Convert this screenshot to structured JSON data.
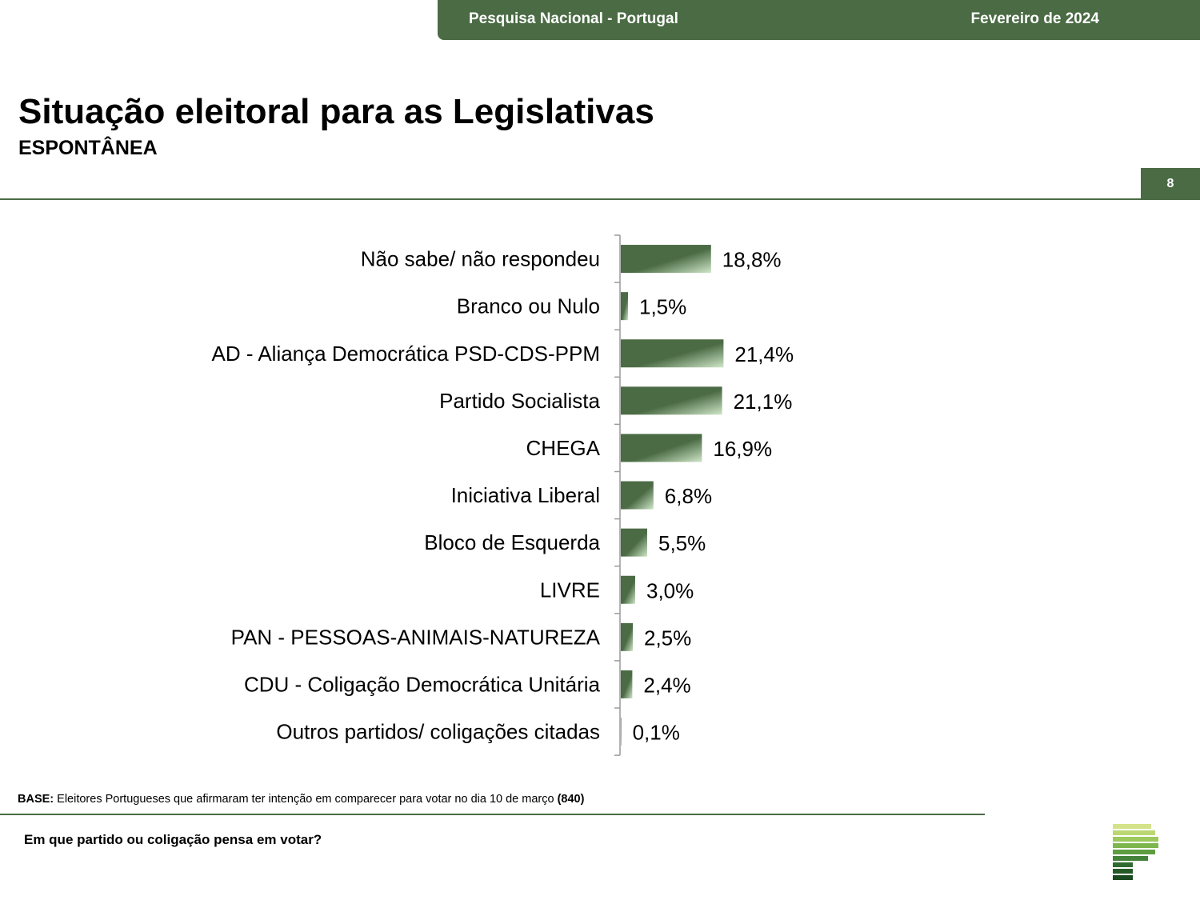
{
  "header": {
    "left": "Pesquisa Nacional - Portugal",
    "right": "Fevereiro de 2024"
  },
  "title": "Situação eleitoral para as Legislativas",
  "subtitle": "ESPONTÂNEA",
  "page_number": "8",
  "footer": {
    "base_label": "BASE:",
    "base_text": " Eleitores Portugueses que afirmaram ter intenção em comparecer para votar no dia 10 de março ",
    "base_count": "(840)",
    "question": "Em que partido ou coligação pensa em votar?"
  },
  "colors": {
    "accent": "#4a6b44",
    "bar_dark": "#4a6b44",
    "bar_light": "#cfe6c8"
  },
  "logo": {
    "icon": "striped-p-logo-icon"
  },
  "chart_data": {
    "type": "bar",
    "orientation": "horizontal",
    "categories": [
      "Não sabe/ não respondeu",
      "Branco ou Nulo",
      "AD - Aliança Democrática PSD-CDS-PPM",
      "Partido Socialista",
      "CHEGA",
      "Iniciativa Liberal",
      "Bloco de Esquerda",
      "LIVRE",
      "PAN - PESSOAS-ANIMAIS-NATUREZA",
      "CDU - Coligação Democrática Unitária",
      "Outros partidos/ coligações citadas"
    ],
    "values": [
      18.8,
      1.5,
      21.4,
      21.1,
      16.9,
      6.8,
      5.5,
      3.0,
      2.5,
      2.4,
      0.1
    ],
    "value_labels": [
      "18,8%",
      "1,5%",
      "21,4%",
      "21,1%",
      "16,9%",
      "6,8%",
      "5,5%",
      "3,0%",
      "2,5%",
      "2,4%",
      "0,1%"
    ],
    "title": "",
    "xlabel": "",
    "ylabel": "",
    "xlim": [
      0,
      100
    ],
    "grid": false,
    "legend": "none"
  }
}
